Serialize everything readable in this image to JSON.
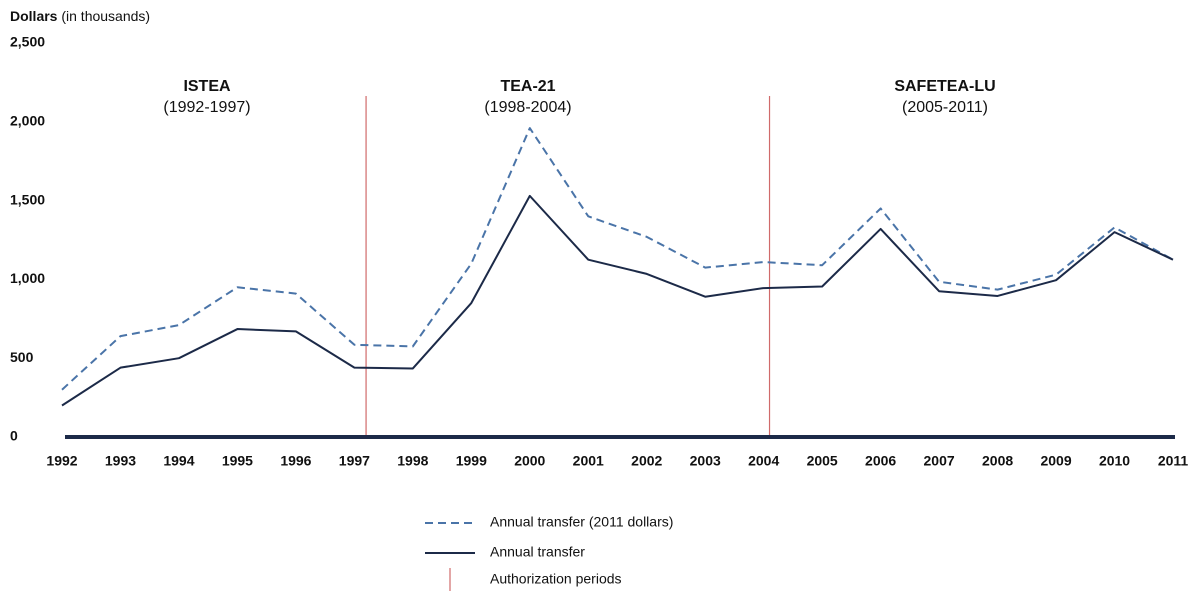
{
  "chart_data": {
    "type": "line",
    "y_label": "Dollars",
    "y_label_unit": "(in thousands)",
    "x": [
      1992,
      1993,
      1994,
      1995,
      1996,
      1997,
      1998,
      1999,
      2000,
      2001,
      2002,
      2003,
      2004,
      2005,
      2006,
      2007,
      2008,
      2009,
      2010,
      2011
    ],
    "xlim": [
      1992,
      2011
    ],
    "xticks": [
      1992,
      1993,
      1994,
      1995,
      1996,
      1997,
      1998,
      1999,
      2000,
      2001,
      2002,
      2003,
      2004,
      2005,
      2006,
      2007,
      2008,
      2009,
      2010,
      2011
    ],
    "ylim": [
      0,
      2500
    ],
    "yticks": [
      0,
      {
        "value": 500,
        "label": "500"
      },
      {
        "value": 1000,
        "label": "1,000"
      },
      {
        "value": 1500,
        "label": "1,500"
      },
      {
        "value": 2000,
        "label": "2,000"
      },
      {
        "value": 2500,
        "label": "2,500"
      }
    ],
    "series": [
      {
        "name": "Annual transfer (2011 dollars)",
        "color": "#4a74a8",
        "dashed": true,
        "values": [
          300,
          640,
          710,
          950,
          910,
          585,
          575,
          1100,
          1960,
          1400,
          1270,
          1075,
          1110,
          1090,
          1450,
          985,
          935,
          1030,
          1330,
          1125
        ]
      },
      {
        "name": "Annual transfer",
        "color": "#1c2a48",
        "dashed": false,
        "values": [
          200,
          440,
          500,
          685,
          670,
          440,
          435,
          850,
          1530,
          1125,
          1035,
          890,
          945,
          955,
          1320,
          925,
          895,
          995,
          1300,
          1125
        ]
      }
    ],
    "breaks_name": "Authorization periods",
    "breaks_color": "#d06a6a",
    "authorization_breaks": [
      1997.2,
      2004.1
    ],
    "periods": [
      {
        "name": "ISTEA",
        "years": "(1992-1997)"
      },
      {
        "name": "TEA-21",
        "years": "(1998-2004)"
      },
      {
        "name": "SAFETEA-LU",
        "years": "(2005-2011)"
      }
    ]
  }
}
